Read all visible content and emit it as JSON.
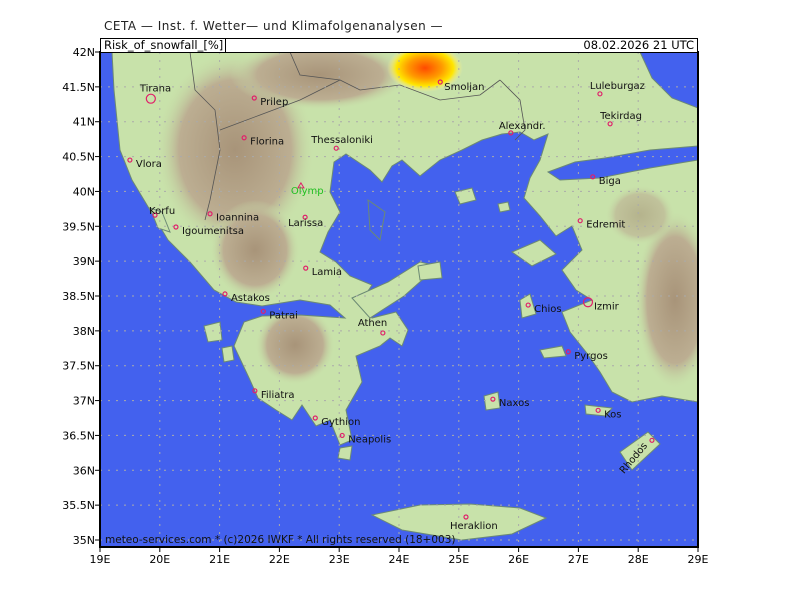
{
  "title": "CETA — Inst. f. Wetter— und Klimafolgenanalysen —",
  "header": {
    "parameter": "Risk_of_snowfall_[%]",
    "datetime": "08.02.2026 21 UTC"
  },
  "footer": "meteo-services.com * (c)2026 IWKF * All rights reserved (18+003)",
  "colors": {
    "sea": "#4361ee",
    "land": "#c8e2aa",
    "mountain": "#b7a68d",
    "snow_low": "#ffe600",
    "snow_high": "#ff4a00",
    "city_marker": "#e0206a",
    "peak_label": "#22c022"
  },
  "axes": {
    "lon_range": [
      19,
      29
    ],
    "lat_range": [
      35,
      42
    ],
    "lon_ticks": [
      {
        "v": 19,
        "t": "19E"
      },
      {
        "v": 20,
        "t": "20E"
      },
      {
        "v": 21,
        "t": "21E"
      },
      {
        "v": 22,
        "t": "22E"
      },
      {
        "v": 23,
        "t": "23E"
      },
      {
        "v": 24,
        "t": "24E"
      },
      {
        "v": 25,
        "t": "25E"
      },
      {
        "v": 26,
        "t": "26E"
      },
      {
        "v": 27,
        "t": "27E"
      },
      {
        "v": 28,
        "t": "28E"
      },
      {
        "v": 29,
        "t": "29E"
      }
    ],
    "lat_ticks": [
      {
        "v": 35,
        "t": "35N"
      },
      {
        "v": 35.5,
        "t": "35.5N"
      },
      {
        "v": 36,
        "t": "36N"
      },
      {
        "v": 36.5,
        "t": "36.5N"
      },
      {
        "v": 37,
        "t": "37N"
      },
      {
        "v": 37.5,
        "t": "37.5N"
      },
      {
        "v": 38,
        "t": "38N"
      },
      {
        "v": 38.5,
        "t": "38.5N"
      },
      {
        "v": 39,
        "t": "39N"
      },
      {
        "v": 39.5,
        "t": "39.5N"
      },
      {
        "v": 40,
        "t": "40N"
      },
      {
        "v": 40.5,
        "t": "40.5N"
      },
      {
        "v": 41,
        "t": "41N"
      },
      {
        "v": 41.5,
        "t": "41.5N"
      },
      {
        "v": 42,
        "t": "42N"
      }
    ]
  },
  "places": [
    {
      "name": "Tirana",
      "lon": 19.85,
      "lat": 41.33,
      "marker": "capital"
    },
    {
      "name": "Prilep",
      "lon": 21.58,
      "lat": 41.34,
      "marker": "city"
    },
    {
      "name": "Florina",
      "lon": 21.41,
      "lat": 40.77,
      "marker": "city"
    },
    {
      "name": "Thessaloniki",
      "lon": 22.95,
      "lat": 40.62,
      "marker": "city"
    },
    {
      "name": "Vlora",
      "lon": 19.5,
      "lat": 40.45,
      "marker": "city"
    },
    {
      "name": "Olymp",
      "lon": 22.36,
      "lat": 40.08,
      "marker": "peak"
    },
    {
      "name": "Korfu",
      "lon": 19.92,
      "lat": 39.66,
      "marker": "city"
    },
    {
      "name": "Ioannina",
      "lon": 20.84,
      "lat": 39.68,
      "marker": "city"
    },
    {
      "name": "Igoumenitsa",
      "lon": 20.27,
      "lat": 39.49,
      "marker": "city"
    },
    {
      "name": "Larissa",
      "lon": 22.43,
      "lat": 39.63,
      "marker": "city"
    },
    {
      "name": "Lamia",
      "lon": 22.44,
      "lat": 38.9,
      "marker": "city"
    },
    {
      "name": "Astakos",
      "lon": 21.09,
      "lat": 38.53,
      "marker": "city"
    },
    {
      "name": "Patrai",
      "lon": 21.73,
      "lat": 38.28,
      "marker": "city"
    },
    {
      "name": "Athen",
      "lon": 23.73,
      "lat": 37.97,
      "marker": "city"
    },
    {
      "name": "Filiatra",
      "lon": 21.59,
      "lat": 37.14,
      "marker": "city"
    },
    {
      "name": "Gythion",
      "lon": 22.6,
      "lat": 36.75,
      "marker": "city"
    },
    {
      "name": "Neapolis",
      "lon": 23.05,
      "lat": 36.5,
      "marker": "city"
    },
    {
      "name": "Heraklion",
      "lon": 25.12,
      "lat": 35.33,
      "marker": "city"
    },
    {
      "name": "Naxos",
      "lon": 25.57,
      "lat": 37.02,
      "marker": "city"
    },
    {
      "name": "Smoljan",
      "lon": 24.69,
      "lat": 41.57,
      "marker": "city"
    },
    {
      "name": "Alexandr.",
      "lon": 25.87,
      "lat": 40.84,
      "marker": "city"
    },
    {
      "name": "Luleburgaz",
      "lon": 27.36,
      "lat": 41.4,
      "marker": "city"
    },
    {
      "name": "Tekirdag",
      "lon": 27.53,
      "lat": 40.97,
      "marker": "city"
    },
    {
      "name": "Biga",
      "lon": 27.24,
      "lat": 40.21,
      "marker": "city"
    },
    {
      "name": "Edremit",
      "lon": 27.03,
      "lat": 39.58,
      "marker": "city"
    },
    {
      "name": "Chios",
      "lon": 26.16,
      "lat": 38.37,
      "marker": "city"
    },
    {
      "name": "Izmir",
      "lon": 27.16,
      "lat": 38.41,
      "marker": "capital"
    },
    {
      "name": "Pyrgos",
      "lon": 26.83,
      "lat": 37.7,
      "marker": "city"
    },
    {
      "name": "Kos",
      "lon": 27.33,
      "lat": 36.86,
      "marker": "city"
    },
    {
      "name": "Rhodos",
      "lon": 28.23,
      "lat": 36.43,
      "marker": "city"
    }
  ]
}
